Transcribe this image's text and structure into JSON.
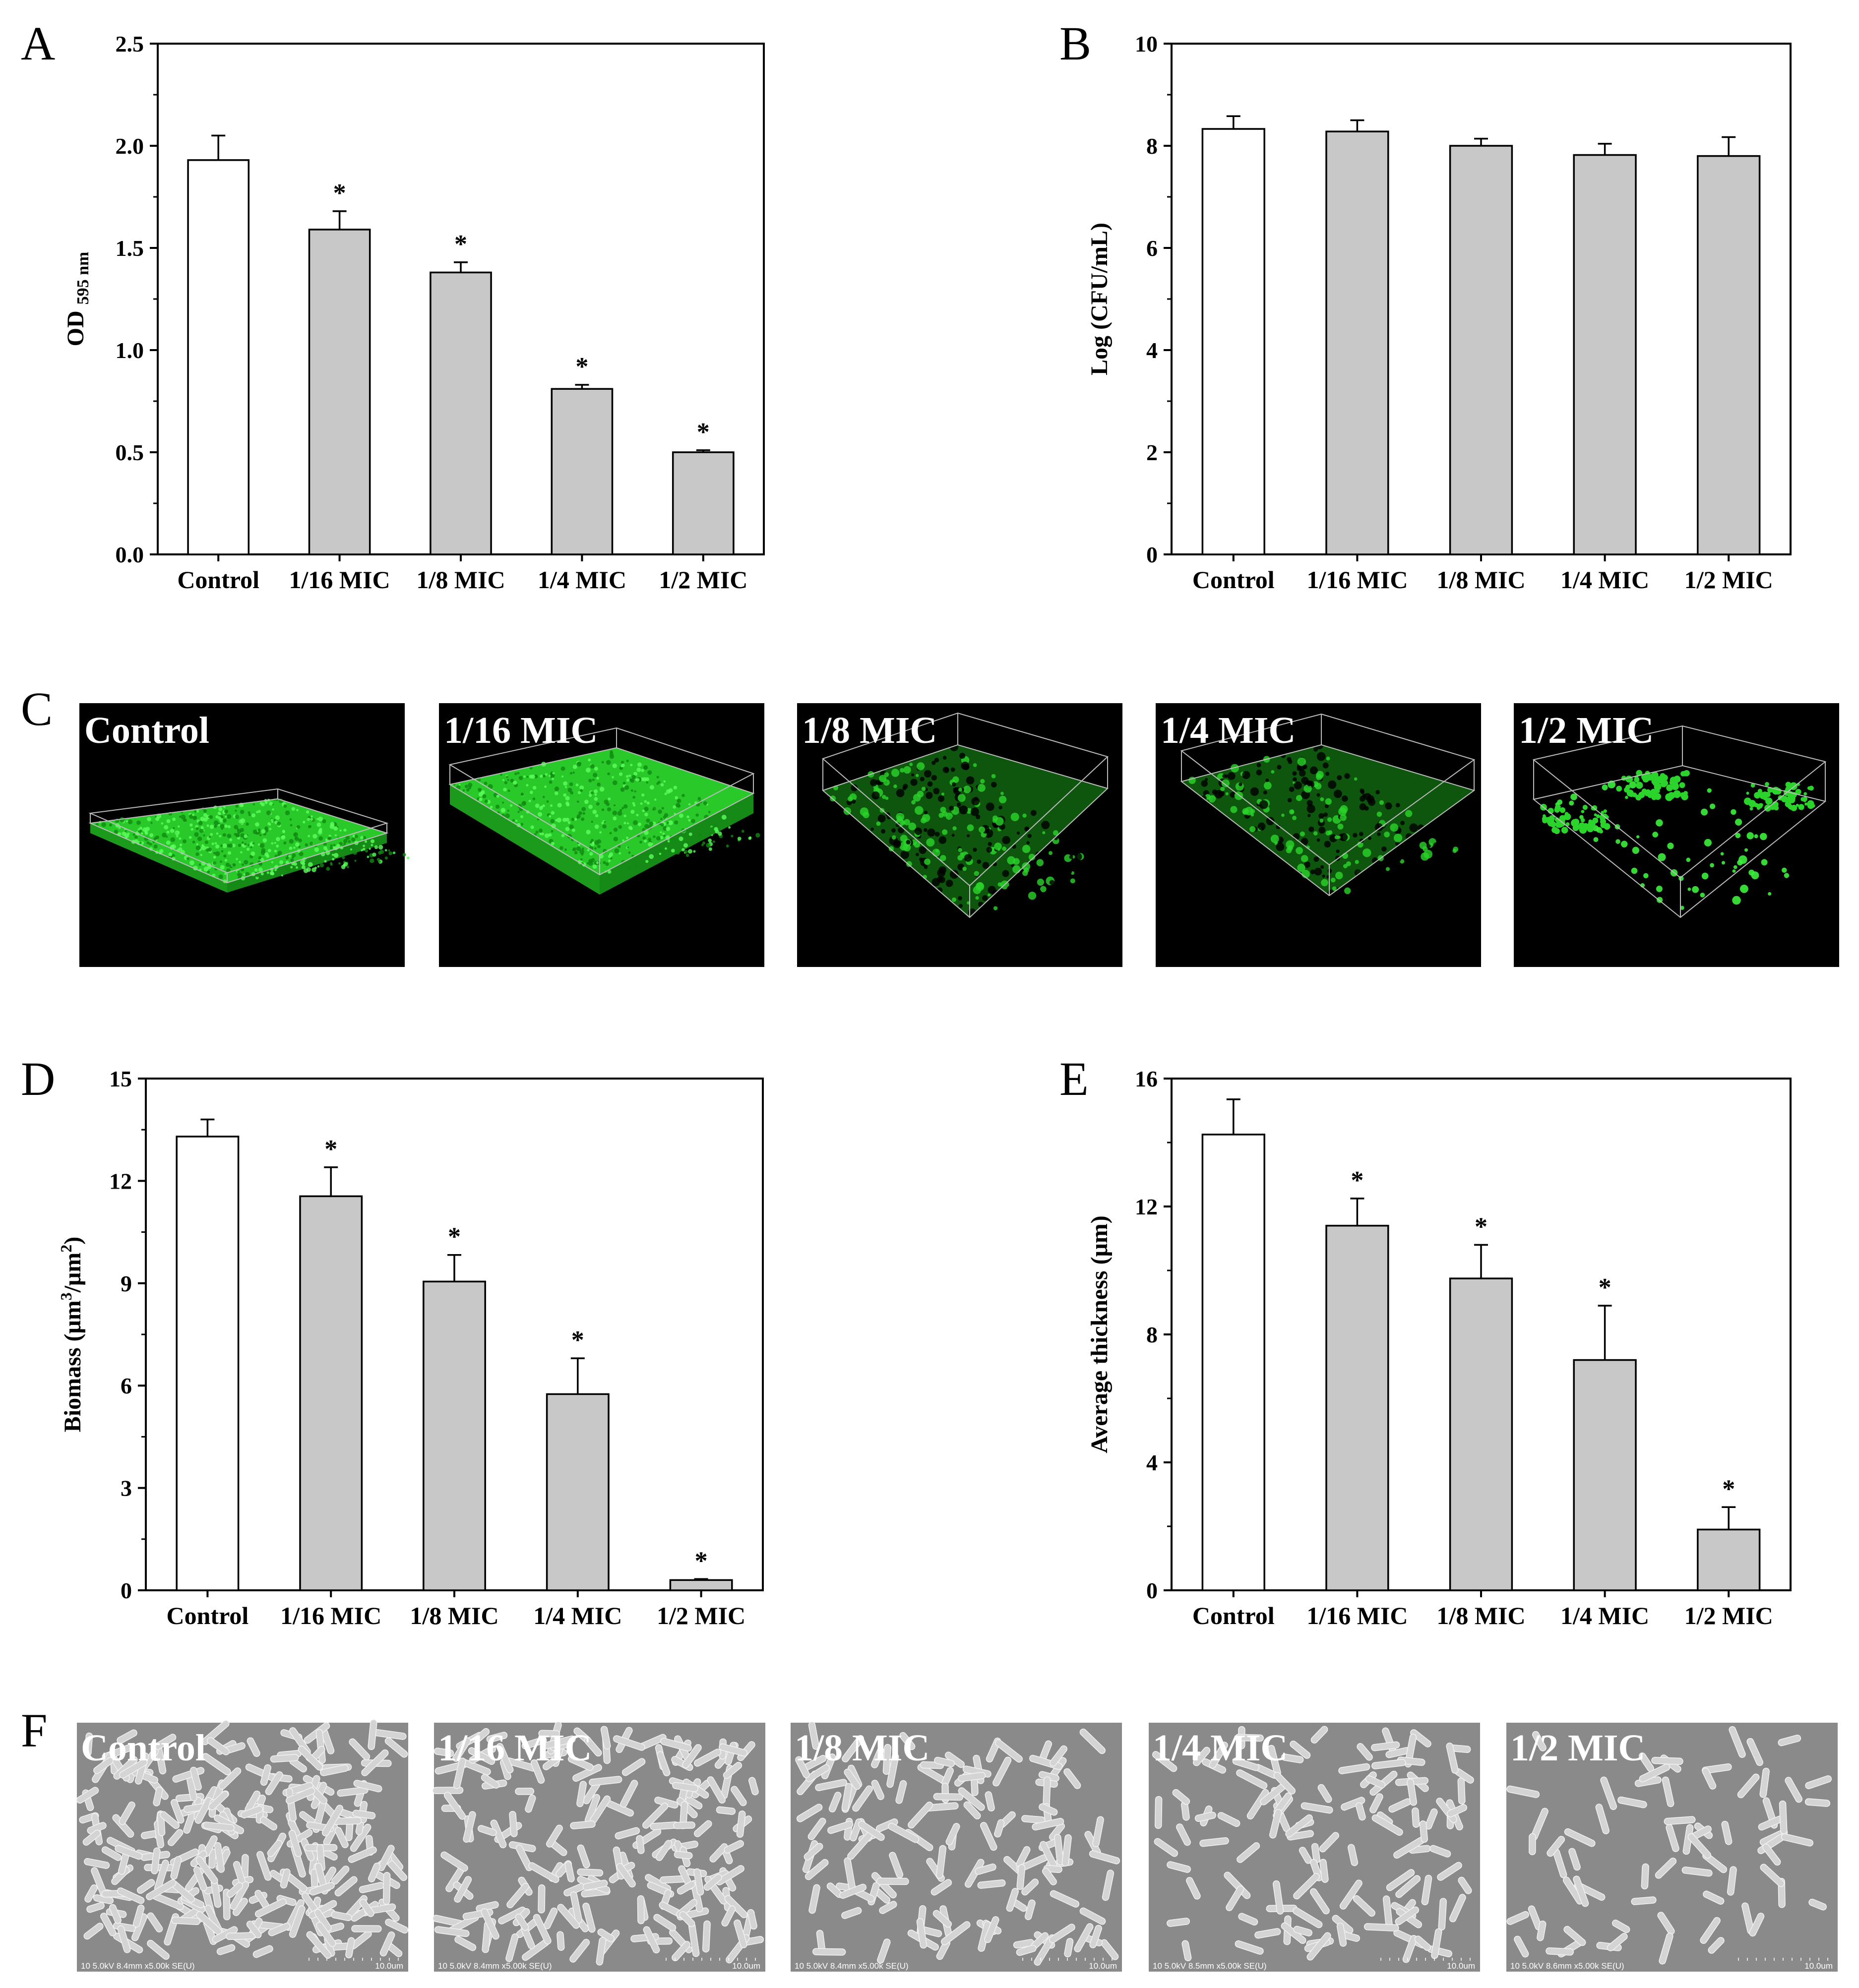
{
  "panels": {
    "A": "A",
    "B": "B",
    "C": "C",
    "D": "D",
    "E": "E",
    "F": "F"
  },
  "chart_data": [
    {
      "id": "A",
      "type": "bar",
      "categories": [
        "Control",
        "1/16 MIC",
        "1/8 MIC",
        "1/4 MIC",
        "1/2 MIC"
      ],
      "values": [
        1.93,
        1.59,
        1.38,
        0.81,
        0.5
      ],
      "errors": [
        0.12,
        0.09,
        0.05,
        0.02,
        0.01
      ],
      "significant": [
        false,
        true,
        true,
        true,
        true
      ],
      "ylabel": "OD",
      "ylabel_sub": "595 nm",
      "ylim": [
        0,
        2.5
      ],
      "yticks": [
        0.0,
        0.5,
        1.0,
        1.5,
        2.0,
        2.5
      ],
      "ytick_labels": [
        "0.0",
        "0.5",
        "1.0",
        "1.5",
        "2.0",
        "2.5"
      ],
      "colors": [
        "#ffffff",
        "#c8c8c8",
        "#c8c8c8",
        "#c8c8c8",
        "#c8c8c8"
      ]
    },
    {
      "id": "B",
      "type": "bar",
      "categories": [
        "Control",
        "1/16 MIC",
        "1/8 MIC",
        "1/4 MIC",
        "1/2 MIC"
      ],
      "values": [
        8.33,
        8.28,
        8.0,
        7.82,
        7.8
      ],
      "errors": [
        0.25,
        0.22,
        0.14,
        0.22,
        0.37
      ],
      "significant": [
        false,
        false,
        false,
        false,
        false
      ],
      "ylabel": "Log (CFU/mL)",
      "ylim": [
        0,
        10
      ],
      "yticks": [
        0,
        2,
        4,
        6,
        8,
        10
      ],
      "ytick_labels": [
        "0",
        "2",
        "4",
        "6",
        "8",
        "10"
      ],
      "colors": [
        "#ffffff",
        "#c8c8c8",
        "#c8c8c8",
        "#c8c8c8",
        "#c8c8c8"
      ]
    },
    {
      "id": "D",
      "type": "bar",
      "categories": [
        "Control",
        "1/16 MIC",
        "1/8 MIC",
        "1/4 MIC",
        "1/2 MIC"
      ],
      "values": [
        13.3,
        11.55,
        9.05,
        5.75,
        0.3
      ],
      "errors": [
        0.5,
        0.85,
        0.78,
        1.05,
        0.03
      ],
      "significant": [
        false,
        true,
        true,
        true,
        true
      ],
      "ylabel": "Biomass (μm³/μm²)",
      "ylabel_parts": [
        "Biomass (μm",
        "3",
        "/μm",
        "2",
        ")"
      ],
      "ylim": [
        0,
        15
      ],
      "yticks": [
        0,
        3,
        6,
        9,
        12,
        15
      ],
      "ytick_labels": [
        "0",
        "3",
        "6",
        "9",
        "12",
        "15"
      ],
      "colors": [
        "#ffffff",
        "#c8c8c8",
        "#c8c8c8",
        "#c8c8c8",
        "#c8c8c8"
      ]
    },
    {
      "id": "E",
      "type": "bar",
      "categories": [
        "Control",
        "1/16 MIC",
        "1/8 MIC",
        "1/4 MIC",
        "1/2 MIC"
      ],
      "values": [
        14.25,
        11.4,
        9.75,
        7.2,
        1.9
      ],
      "errors": [
        1.1,
        0.85,
        1.05,
        1.7,
        0.7
      ],
      "significant": [
        false,
        true,
        true,
        true,
        true
      ],
      "ylabel": "Average thickness (μm)",
      "ylim": [
        0,
        16
      ],
      "yticks": [
        0,
        4,
        8,
        12,
        16
      ],
      "ytick_labels": [
        "0",
        "4",
        "8",
        "12",
        "16"
      ],
      "colors": [
        "#ffffff",
        "#c8c8c8",
        "#c8c8c8",
        "#c8c8c8",
        "#c8c8c8"
      ]
    }
  ],
  "significance_marker": "*",
  "clsm_images": {
    "labels": [
      "Control",
      "1/16 MIC",
      "1/8 MIC",
      "1/4 MIC",
      "1/2 MIC"
    ],
    "signal_color": "#2bd42b",
    "background": "#000000"
  },
  "sem_images": {
    "labels": [
      "Control",
      "1/16 MIC",
      "1/8 MIC",
      "1/4 MIC",
      "1/2 MIC"
    ],
    "info": [
      "10 5.0kV 8.4mm x5.00k SE(U)",
      "10 5.0kV 8.4mm x5.00k SE(U)",
      "10 5.0kV 8.4mm x5.00k SE(U)",
      "10 5.0kV 8.5mm x5.00k SE(U)",
      "10 5.0kV 8.6mm x5.00k SE(U)"
    ],
    "scale": "10.0um",
    "background": "#8a8a8a"
  }
}
